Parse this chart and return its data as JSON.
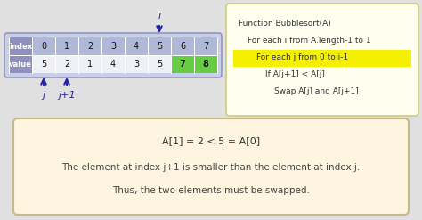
{
  "bg_color": "#e0e0e0",
  "table_indices": [
    0,
    1,
    2,
    3,
    4,
    5,
    6,
    7
  ],
  "table_values": [
    5,
    2,
    1,
    4,
    3,
    5,
    7,
    8
  ],
  "cell_color_blue": "#b0b8d8",
  "cell_color_green": "#66cc44",
  "cell_color_white": "#f0f0f8",
  "label_cell_color": "#9090c0",
  "i_pointer_col": 5,
  "j_pointer_col": 0,
  "j1_pointer_col": 1,
  "arrow_color": "#2222aa",
  "code_box_bg": "#fffff0",
  "code_box_border": "#cccc80",
  "code_lines": [
    "Function Bubblesort(A)",
    "For each i from A.length-1 to 1",
    "For each j from 0 to i-1",
    "If A[j+1] < A[j]",
    "Swap A[j] and A[j+1]"
  ],
  "code_indents": [
    0,
    1,
    2,
    3,
    4
  ],
  "highlight_line": 2,
  "highlight_color": "#f5f000",
  "desc_box_bg": "#fdf5df",
  "desc_box_border": "#c8b888",
  "desc_line1": "A[1] = 2 < 5 = A[0]",
  "desc_line2": "The element at index j+1 is smaller than the element at index j.",
  "desc_line3": "Thus, the two elements must be swapped."
}
